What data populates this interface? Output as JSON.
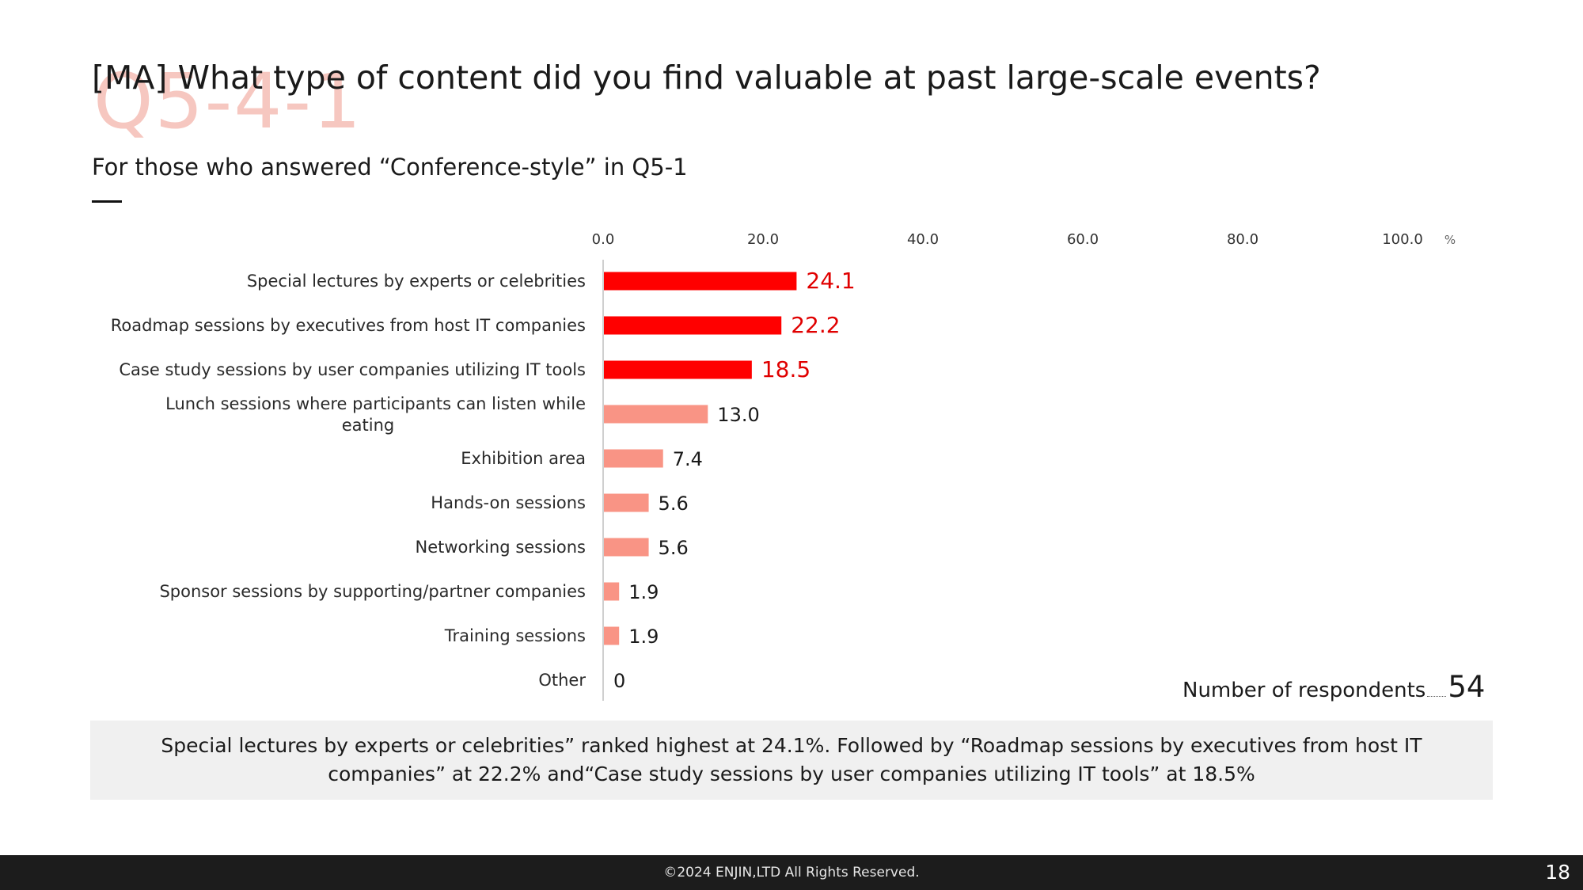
{
  "watermark": "Q5-4-1",
  "title": "[MA] What type of content did you find valuable at past large-scale events?",
  "subtitle": "For those who answered “Conference-style” in Q5-1",
  "respondents": {
    "label": "Number of respondents",
    "count": "54"
  },
  "summary": "Special lectures by experts or celebrities” ranked highest at 24.1%. Followed by “Roadmap sessions by executives from host IT companies” at 22.2%  and“Case study sessions by user companies utilizing IT tools” at 18.5%",
  "footer": {
    "copyright": "©2024 ENJIN,LTD  All Rights Reserved.",
    "page_number": "18"
  },
  "colors": {
    "highlight": "#ff0000",
    "normal": "#f99485",
    "label_highlight": "#e00000"
  },
  "chart_data": {
    "type": "bar",
    "orientation": "horizontal",
    "unit": "%",
    "xlim": [
      0,
      100
    ],
    "tick_labels": [
      "0.0",
      "20.0",
      "40.0",
      "60.0",
      "80.0",
      "100.0"
    ],
    "grid": false,
    "categories": [
      [
        "Special lectures by experts or celebrities"
      ],
      [
        "Roadmap sessions by executives from host IT companies"
      ],
      [
        "Case study sessions by user companies utilizing IT tools"
      ],
      [
        "Lunch sessions where participants can listen while",
        "eating"
      ],
      [
        "Exhibition area"
      ],
      [
        "Hands-on sessions"
      ],
      [
        "Networking sessions"
      ],
      [
        "Sponsor sessions by supporting/partner companies"
      ],
      [
        "Training sessions"
      ],
      [
        "Other"
      ]
    ],
    "values": [
      24.1,
      22.2,
      18.5,
      13.0,
      7.4,
      5.6,
      5.6,
      1.9,
      1.9,
      0
    ],
    "value_labels": [
      "24.1",
      "22.2",
      "18.5",
      "13.0",
      "7.4",
      "5.6",
      "5.6",
      "1.9",
      "1.9",
      "0"
    ],
    "highlighted": [
      true,
      true,
      true,
      false,
      false,
      false,
      false,
      false,
      false,
      false
    ]
  }
}
